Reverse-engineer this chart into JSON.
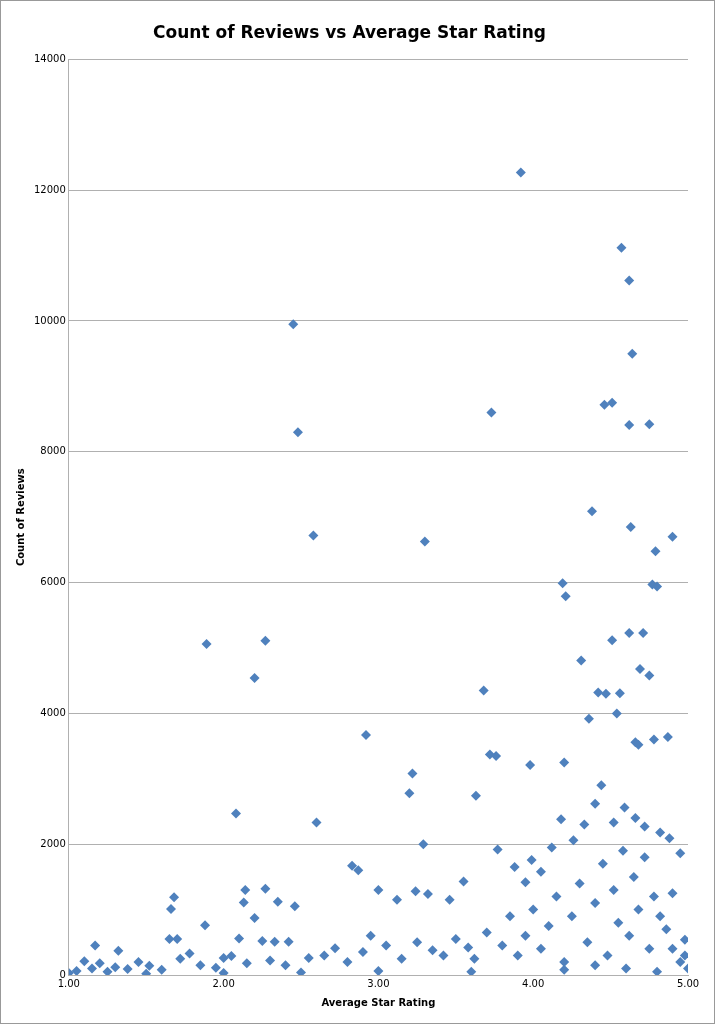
{
  "chart_data": {
    "type": "scatter",
    "title": "Count of Reviews vs Average Star Rating",
    "xlabel": "Average Star Rating",
    "ylabel": "Count of Reviews",
    "xlim": [
      1,
      5
    ],
    "xticks": [
      {
        "value": 1,
        "label": "1.00"
      },
      {
        "value": 2,
        "label": "2.00"
      },
      {
        "value": 3,
        "label": "3.00"
      },
      {
        "value": 4,
        "label": "4.00"
      },
      {
        "value": 5,
        "label": "5.00"
      }
    ],
    "ylim": [
      0,
      14000
    ],
    "yticks": [
      0,
      2000,
      4000,
      6000,
      8000,
      10000,
      12000,
      14000
    ],
    "grid": "y",
    "marker": "diamond",
    "legend": false,
    "series": [
      {
        "color": "#4f81bd",
        "x": [
          3.92,
          4.57,
          4.62,
          2.45,
          4.64,
          2.48,
          3.73,
          4.46,
          4.51,
          4.62,
          4.75,
          4.38,
          2.58,
          3.3,
          4.63,
          4.9,
          4.79,
          4.19,
          4.21,
          4.77,
          4.8,
          1.89,
          2.27,
          2.2,
          4.51,
          4.62,
          4.71,
          4.31,
          4.69,
          4.75,
          3.68,
          4.42,
          4.47,
          4.56,
          4.54,
          4.36,
          2.92,
          4.87,
          4.78,
          4.66,
          4.68,
          3.72,
          3.76,
          3.98,
          4.2,
          3.22,
          3.2,
          3.63,
          2.08,
          2.6,
          3.29,
          2.83,
          2.87,
          1.68,
          1.66,
          1.88,
          2.14,
          2.13,
          2.27,
          2.35,
          2.2,
          2.46,
          2.1,
          1.65,
          1.7,
          1.17,
          1.32,
          2.25,
          2.33,
          2.42,
          3.0,
          3.12,
          3.24,
          3.32,
          3.46,
          3.55,
          3.77,
          3.88,
          3.95,
          3.99,
          4.05,
          4.12,
          4.18,
          4.26,
          4.33,
          4.4,
          4.44,
          4.52,
          4.59,
          4.66,
          4.72,
          4.82,
          4.88,
          4.95,
          4.98,
          4.9,
          1.0,
          1.05,
          1.1,
          1.15,
          1.2,
          1.25,
          1.3,
          1.38,
          1.45,
          1.52,
          1.6,
          1.72,
          1.78,
          1.85,
          1.95,
          2.0,
          2.05,
          2.15,
          2.3,
          2.4,
          2.55,
          2.65,
          2.72,
          2.8,
          2.9,
          2.95,
          3.05,
          3.15,
          3.25,
          3.35,
          3.42,
          3.5,
          3.58,
          3.62,
          3.7,
          3.8,
          3.85,
          3.9,
          3.95,
          4.0,
          4.05,
          4.1,
          4.15,
          4.2,
          4.25,
          4.3,
          4.35,
          4.4,
          4.45,
          4.48,
          4.52,
          4.55,
          4.58,
          4.62,
          4.65,
          4.68,
          4.72,
          4.75,
          4.78,
          4.82,
          4.86,
          4.9,
          4.95,
          5.0,
          4.98,
          4.6,
          4.4,
          4.2,
          3.6,
          3.0,
          2.5,
          2.0,
          1.5,
          4.8
        ],
        "values": [
          12270,
          11120,
          10620,
          9950,
          9500,
          8300,
          8600,
          8720,
          8750,
          8410,
          8420,
          7090,
          6720,
          6630,
          6850,
          6700,
          6480,
          5990,
          5790,
          5970,
          5940,
          5060,
          5110,
          4540,
          5120,
          5230,
          5230,
          4810,
          4680,
          4580,
          4350,
          4320,
          4300,
          4310,
          4000,
          3920,
          3670,
          3640,
          3600,
          3560,
          3520,
          3370,
          3350,
          3210,
          3250,
          3080,
          2780,
          2740,
          2470,
          2330,
          2000,
          1670,
          1600,
          1190,
          1010,
          760,
          1300,
          1110,
          1320,
          1120,
          870,
          1050,
          560,
          550,
          550,
          450,
          370,
          520,
          510,
          510,
          1300,
          1150,
          1280,
          1240,
          1150,
          1430,
          1920,
          1650,
          1420,
          1760,
          1580,
          1950,
          2380,
          2060,
          2300,
          2620,
          2900,
          2330,
          2560,
          2400,
          2270,
          2180,
          2090,
          1860,
          540,
          1250,
          30,
          60,
          210,
          100,
          180,
          50,
          120,
          90,
          200,
          140,
          80,
          250,
          330,
          150,
          110,
          260,
          290,
          180,
          220,
          150,
          260,
          300,
          410,
          200,
          350,
          600,
          450,
          250,
          500,
          380,
          300,
          550,
          420,
          250,
          650,
          450,
          900,
          300,
          600,
          1000,
          400,
          750,
          1200,
          200,
          900,
          1400,
          500,
          1100,
          1700,
          300,
          1300,
          800,
          1900,
          600,
          1500,
          1000,
          1800,
          400,
          1200,
          900,
          700,
          400,
          200,
          100,
          300,
          100,
          150,
          80,
          50,
          60,
          40,
          30,
          20,
          50
        ]
      }
    ]
  }
}
